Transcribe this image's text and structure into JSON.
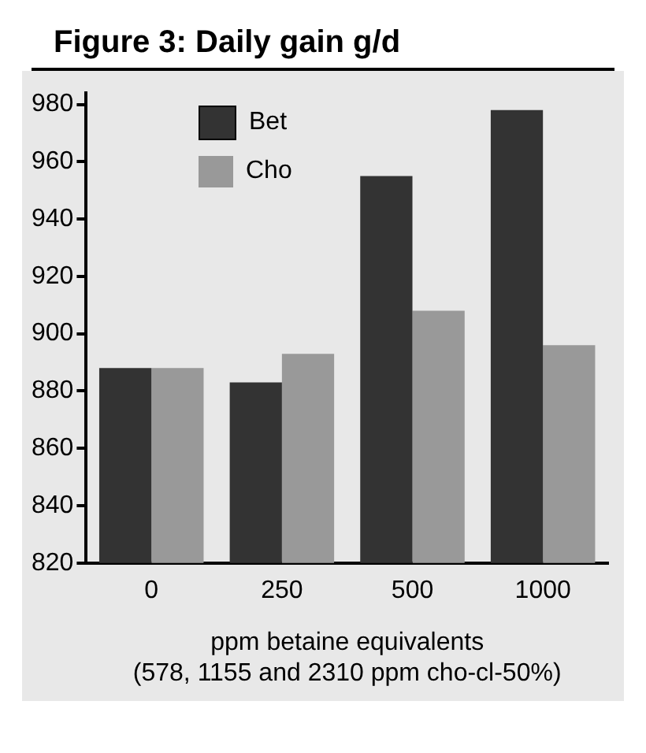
{
  "chart_data": {
    "type": "bar",
    "title": "Figure 3: Daily gain g/d",
    "xlabel": "ppm betaine equivalents\n(578, 1155 and 2310 ppm cho-cl-50%)",
    "categories": [
      "0",
      "250",
      "500",
      "1000"
    ],
    "series": [
      {
        "name": "Bet",
        "color": "#333333",
        "values": [
          888,
          883,
          955,
          978
        ]
      },
      {
        "name": "Cho",
        "color": "#999999",
        "values": [
          888,
          893,
          908,
          896
        ]
      }
    ],
    "ylim": [
      820,
      984
    ],
    "yticks": [
      820,
      840,
      860,
      880,
      900,
      920,
      940,
      960,
      980
    ],
    "grid": false,
    "legend": "top left"
  }
}
